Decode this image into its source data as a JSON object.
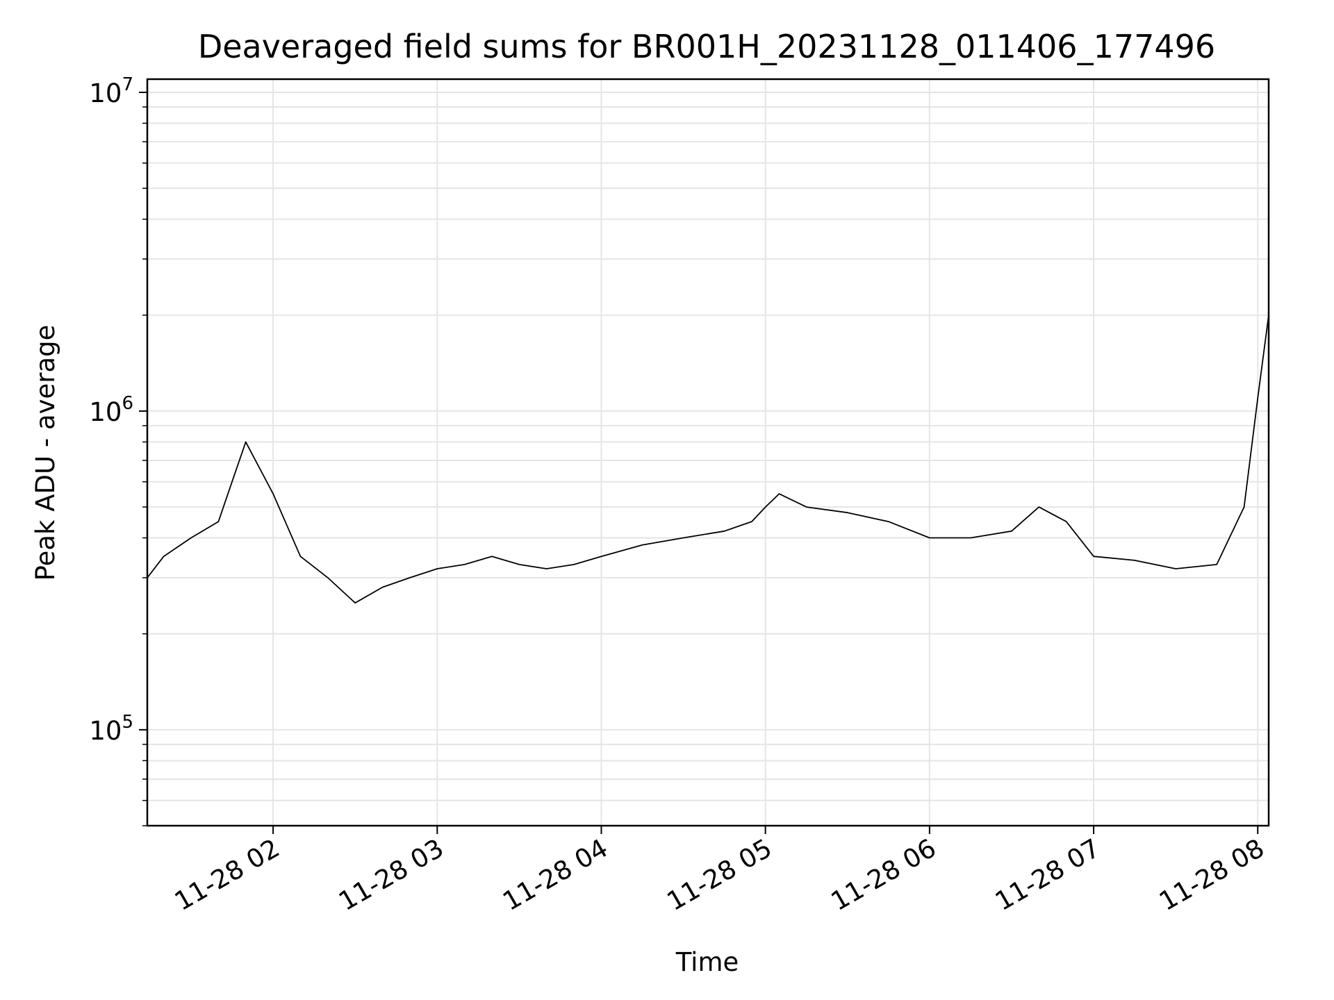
{
  "chart_data": {
    "type": "line",
    "title": "Deaveraged field sums for BR001H_20231128_011406_177496",
    "xlabel": "Time",
    "ylabel": "Peak ADU - average",
    "yscale": "log",
    "ylim": [
      50000,
      11000000
    ],
    "xlim": [
      "2023-11-28 01:14",
      "2023-11-28 08:04"
    ],
    "grid": true,
    "x_ticks": [
      {
        "value": "2023-11-28 02:00",
        "label": "11-28 02"
      },
      {
        "value": "2023-11-28 03:00",
        "label": "11-28 03"
      },
      {
        "value": "2023-11-28 04:00",
        "label": "11-28 04"
      },
      {
        "value": "2023-11-28 05:00",
        "label": "11-28 05"
      },
      {
        "value": "2023-11-28 06:00",
        "label": "11-28 06"
      },
      {
        "value": "2023-11-28 07:00",
        "label": "11-28 07"
      },
      {
        "value": "2023-11-28 08:00",
        "label": "11-28 08"
      }
    ],
    "y_ticks": [
      {
        "value": 100000,
        "base": "10",
        "exp": "5"
      },
      {
        "value": 1000000,
        "base": "10",
        "exp": "6"
      },
      {
        "value": 10000000,
        "base": "10",
        "exp": "7"
      }
    ],
    "line_color": "#000000",
    "series": [
      {
        "x": [
          "2023-11-28 01:14",
          "2023-11-28 01:20",
          "2023-11-28 01:30",
          "2023-11-28 01:40",
          "2023-11-28 01:45",
          "2023-11-28 01:50",
          "2023-11-28 02:00",
          "2023-11-28 02:10",
          "2023-11-28 02:20",
          "2023-11-28 02:30",
          "2023-11-28 02:40",
          "2023-11-28 02:50",
          "2023-11-28 03:00",
          "2023-11-28 03:10",
          "2023-11-28 03:20",
          "2023-11-28 03:30",
          "2023-11-28 03:40",
          "2023-11-28 03:50",
          "2023-11-28 04:00",
          "2023-11-28 04:15",
          "2023-11-28 04:30",
          "2023-11-28 04:45",
          "2023-11-28 04:55",
          "2023-11-28 05:00",
          "2023-11-28 05:05",
          "2023-11-28 05:15",
          "2023-11-28 05:30",
          "2023-11-28 05:45",
          "2023-11-28 06:00",
          "2023-11-28 06:15",
          "2023-11-28 06:30",
          "2023-11-28 06:40",
          "2023-11-28 06:50",
          "2023-11-28 07:00",
          "2023-11-28 07:15",
          "2023-11-28 07:30",
          "2023-11-28 07:45",
          "2023-11-28 07:55",
          "2023-11-28 08:00",
          "2023-11-28 08:04"
        ],
        "y": [
          300000,
          350000,
          400000,
          450000,
          600000,
          800000,
          550000,
          350000,
          300000,
          250000,
          280000,
          300000,
          320000,
          330000,
          350000,
          330000,
          320000,
          330000,
          350000,
          380000,
          400000,
          420000,
          450000,
          500000,
          550000,
          500000,
          480000,
          450000,
          400000,
          400000,
          420000,
          500000,
          450000,
          350000,
          340000,
          320000,
          330000,
          500000,
          1100000,
          2000000
        ]
      }
    ]
  }
}
